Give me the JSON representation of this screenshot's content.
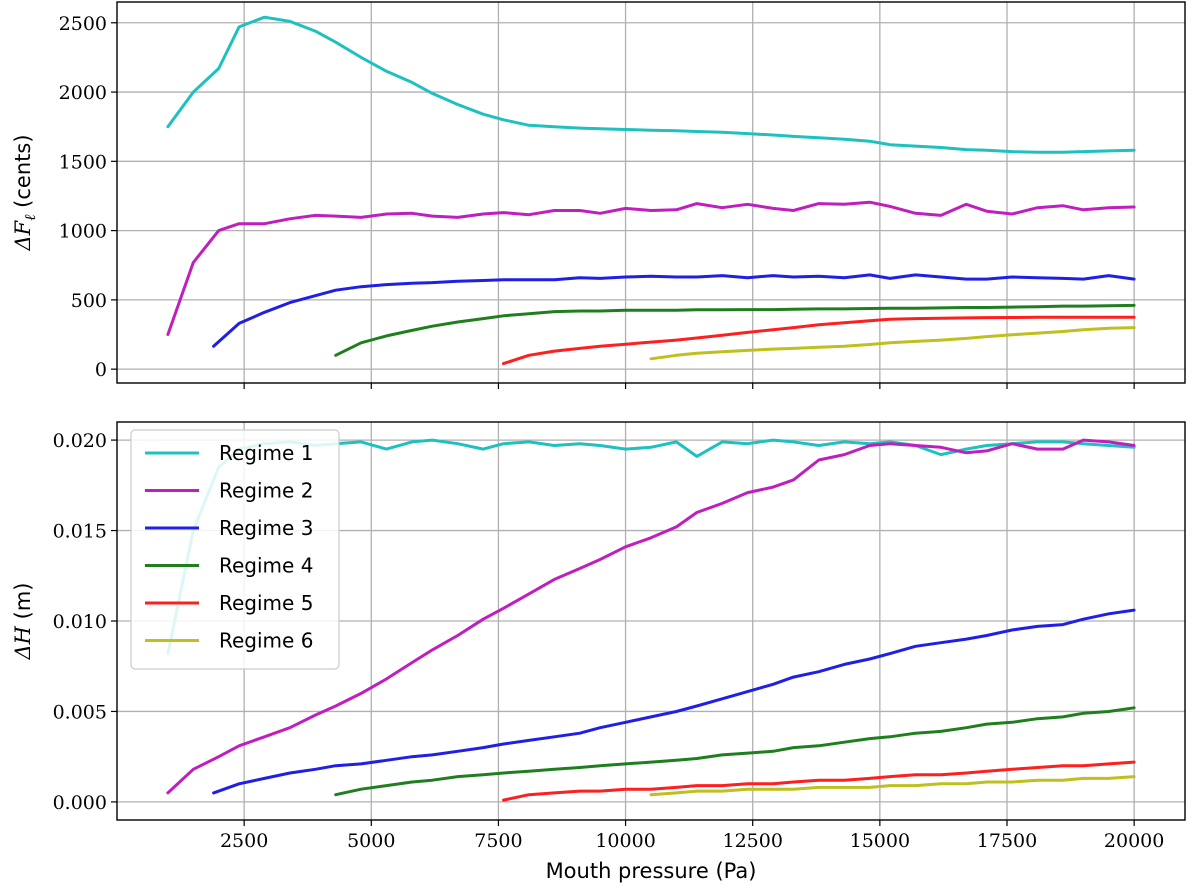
{
  "chart_data": [
    {
      "type": "line",
      "ylabel_main": "ΔF",
      "ylabel_sub": "ℓ",
      "ylabel_unit": "(cents)",
      "xlim": [
        0,
        21000
      ],
      "ylim": [
        -100,
        2650
      ],
      "xticks": [
        2500,
        5000,
        7500,
        10000,
        12500,
        15000,
        17500,
        20000
      ],
      "yticks": [
        0,
        500,
        1000,
        1500,
        2000,
        2500
      ],
      "ytick_labels": [
        "0",
        "500",
        "1000",
        "1500",
        "2000",
        "2500"
      ],
      "grid": true,
      "series": [
        {
          "color": "#1fc0c0",
          "x": [
            1000,
            1500,
            2000,
            2400,
            2900,
            3400,
            3900,
            4300,
            4800,
            5300,
            5800,
            6200,
            6700,
            7200,
            7600,
            8100,
            8600,
            9100,
            9500,
            10000,
            10500,
            11000,
            11400,
            11900,
            12400,
            12900,
            13300,
            13800,
            14300,
            14800,
            15200,
            15700,
            16200,
            16700,
            17100,
            17600,
            18100,
            18600,
            19000,
            19500,
            20000
          ],
          "y": [
            1750,
            2000,
            2170,
            2470,
            2540,
            2510,
            2440,
            2360,
            2250,
            2150,
            2070,
            1990,
            1910,
            1840,
            1800,
            1760,
            1750,
            1740,
            1735,
            1730,
            1725,
            1720,
            1715,
            1710,
            1700,
            1690,
            1680,
            1670,
            1660,
            1645,
            1620,
            1610,
            1600,
            1585,
            1580,
            1570,
            1565,
            1565,
            1570,
            1575,
            1580
          ]
        },
        {
          "color": "#bf1fbf",
          "x": [
            1000,
            1500,
            2000,
            2400,
            2900,
            3400,
            3900,
            4300,
            4800,
            5300,
            5800,
            6200,
            6700,
            7200,
            7600,
            8100,
            8600,
            9100,
            9500,
            10000,
            10500,
            11000,
            11400,
            11900,
            12400,
            12900,
            13300,
            13800,
            14300,
            14800,
            15200,
            15700,
            16200,
            16700,
            17100,
            17600,
            18100,
            18600,
            19000,
            19500,
            20000
          ],
          "y": [
            250,
            770,
            1000,
            1050,
            1050,
            1085,
            1110,
            1105,
            1095,
            1120,
            1125,
            1105,
            1095,
            1120,
            1130,
            1115,
            1145,
            1145,
            1125,
            1160,
            1145,
            1150,
            1195,
            1165,
            1190,
            1160,
            1145,
            1195,
            1190,
            1205,
            1175,
            1125,
            1110,
            1190,
            1140,
            1120,
            1165,
            1180,
            1150,
            1165,
            1170
          ]
        },
        {
          "color": "#1f1fe6",
          "x": [
            1900,
            2400,
            2900,
            3400,
            3900,
            4300,
            4800,
            5300,
            5800,
            6200,
            6700,
            7200,
            7600,
            8100,
            8600,
            9100,
            9500,
            10000,
            10500,
            11000,
            11400,
            11900,
            12400,
            12900,
            13300,
            13800,
            14300,
            14800,
            15200,
            15700,
            16200,
            16700,
            17100,
            17600,
            18100,
            18600,
            19000,
            19500,
            20000
          ],
          "y": [
            165,
            330,
            410,
            480,
            530,
            570,
            595,
            610,
            620,
            625,
            635,
            640,
            645,
            645,
            645,
            660,
            655,
            665,
            670,
            665,
            665,
            675,
            660,
            675,
            665,
            670,
            660,
            680,
            655,
            680,
            665,
            650,
            650,
            665,
            660,
            655,
            650,
            675,
            650
          ]
        },
        {
          "color": "#1f7f1f",
          "x": [
            4300,
            4800,
            5300,
            5800,
            6200,
            6700,
            7200,
            7600,
            8100,
            8600,
            9100,
            9500,
            10000,
            10500,
            11000,
            11400,
            11900,
            12400,
            12900,
            13300,
            13800,
            14300,
            14800,
            15200,
            15700,
            16200,
            16700,
            17100,
            17600,
            18100,
            18600,
            19000,
            19500,
            20000
          ],
          "y": [
            100,
            190,
            240,
            280,
            310,
            340,
            365,
            385,
            400,
            415,
            420,
            420,
            425,
            425,
            425,
            428,
            428,
            430,
            430,
            432,
            435,
            435,
            438,
            440,
            440,
            442,
            445,
            445,
            448,
            450,
            455,
            455,
            458,
            460
          ]
        },
        {
          "color": "#ff1f1f",
          "x": [
            7600,
            8100,
            8600,
            9100,
            9500,
            10000,
            10500,
            11000,
            11400,
            11900,
            12400,
            12900,
            13300,
            13800,
            14300,
            14800,
            15200,
            15700,
            16200,
            16700,
            17100,
            17600,
            18100,
            18600,
            19000,
            19500,
            20000
          ],
          "y": [
            40,
            100,
            130,
            150,
            165,
            180,
            195,
            210,
            225,
            245,
            265,
            285,
            300,
            320,
            335,
            350,
            360,
            365,
            368,
            370,
            372,
            373,
            374,
            374,
            375,
            375,
            375
          ]
        },
        {
          "color": "#bfbf1f",
          "x": [
            10500,
            11000,
            11400,
            11900,
            12400,
            12900,
            13300,
            13800,
            14300,
            14800,
            15200,
            15700,
            16200,
            16700,
            17100,
            17600,
            18100,
            18600,
            19000,
            19500,
            20000
          ],
          "y": [
            75,
            100,
            115,
            125,
            135,
            145,
            150,
            158,
            165,
            178,
            190,
            200,
            210,
            222,
            235,
            248,
            260,
            272,
            285,
            295,
            300
          ]
        }
      ]
    },
    {
      "type": "line",
      "ylabel_main": "ΔH",
      "ylabel_unit": "(m)",
      "xlabel": "Mouth pressure (Pa)",
      "xlim": [
        0,
        21000
      ],
      "ylim": [
        -0.001,
        0.021
      ],
      "xticks": [
        2500,
        5000,
        7500,
        10000,
        12500,
        15000,
        17500,
        20000
      ],
      "xtick_labels": [
        "2500",
        "5000",
        "7500",
        "10000",
        "12500",
        "15000",
        "17500",
        "20000"
      ],
      "yticks": [
        0,
        0.005,
        0.01,
        0.015,
        0.02
      ],
      "ytick_labels": [
        "0.000",
        "0.005",
        "0.010",
        "0.015",
        "0.020"
      ],
      "grid": true,
      "legend": "top-left",
      "series": [
        {
          "name": "Regime 1",
          "color": "#1fc0c0",
          "x": [
            1000,
            1500,
            2000,
            2400,
            2900,
            3400,
            3900,
            4300,
            4800,
            5300,
            5800,
            6200,
            6700,
            7200,
            7600,
            8100,
            8600,
            9100,
            9500,
            10000,
            10500,
            11000,
            11400,
            11900,
            12400,
            12900,
            13300,
            13800,
            14300,
            14800,
            15200,
            15700,
            16200,
            16700,
            17100,
            17600,
            18100,
            18600,
            19000,
            19500,
            20000
          ],
          "y": [
            0.0082,
            0.015,
            0.0185,
            0.0195,
            0.0198,
            0.0199,
            0.0197,
            0.0198,
            0.0199,
            0.0195,
            0.0199,
            0.02,
            0.0198,
            0.0195,
            0.0198,
            0.0199,
            0.0197,
            0.0198,
            0.0197,
            0.0195,
            0.0196,
            0.0199,
            0.0191,
            0.0199,
            0.0198,
            0.02,
            0.0199,
            0.0197,
            0.0199,
            0.0198,
            0.0199,
            0.0197,
            0.0192,
            0.0195,
            0.0197,
            0.0198,
            0.0199,
            0.0199,
            0.0198,
            0.0197,
            0.0196
          ]
        },
        {
          "name": "Regime 2",
          "color": "#bf1fbf",
          "x": [
            1000,
            1500,
            2000,
            2400,
            2900,
            3400,
            3900,
            4300,
            4800,
            5300,
            5800,
            6200,
            6700,
            7200,
            7600,
            8100,
            8600,
            9100,
            9500,
            10000,
            10500,
            11000,
            11400,
            11900,
            12400,
            12900,
            13300,
            13800,
            14300,
            14800,
            15200,
            15700,
            16200,
            16700,
            17100,
            17600,
            18100,
            18600,
            19000,
            19500,
            20000
          ],
          "y": [
            0.0005,
            0.0018,
            0.0025,
            0.0031,
            0.0036,
            0.0041,
            0.0048,
            0.0053,
            0.006,
            0.0068,
            0.0077,
            0.0084,
            0.0092,
            0.0101,
            0.0107,
            0.0115,
            0.0123,
            0.0129,
            0.0134,
            0.0141,
            0.0146,
            0.0152,
            0.016,
            0.0165,
            0.0171,
            0.0174,
            0.0178,
            0.0189,
            0.0192,
            0.0197,
            0.0198,
            0.0197,
            0.0196,
            0.0193,
            0.0194,
            0.0198,
            0.0195,
            0.0195,
            0.02,
            0.0199,
            0.0197
          ]
        },
        {
          "name": "Regime 3",
          "color": "#1f1fe6",
          "x": [
            1900,
            2400,
            2900,
            3400,
            3900,
            4300,
            4800,
            5300,
            5800,
            6200,
            6700,
            7200,
            7600,
            8100,
            8600,
            9100,
            9500,
            10000,
            10500,
            11000,
            11400,
            11900,
            12400,
            12900,
            13300,
            13800,
            14300,
            14800,
            15200,
            15700,
            16200,
            16700,
            17100,
            17600,
            18100,
            18600,
            19000,
            19500,
            20000
          ],
          "y": [
            0.0005,
            0.001,
            0.0013,
            0.0016,
            0.0018,
            0.002,
            0.0021,
            0.0023,
            0.0025,
            0.0026,
            0.0028,
            0.003,
            0.0032,
            0.0034,
            0.0036,
            0.0038,
            0.0041,
            0.0044,
            0.0047,
            0.005,
            0.0053,
            0.0057,
            0.0061,
            0.0065,
            0.0069,
            0.0072,
            0.0076,
            0.0079,
            0.0082,
            0.0086,
            0.0088,
            0.009,
            0.0092,
            0.0095,
            0.0097,
            0.0098,
            0.0101,
            0.0104,
            0.0106
          ]
        },
        {
          "name": "Regime 4",
          "color": "#1f7f1f",
          "x": [
            4300,
            4800,
            5300,
            5800,
            6200,
            6700,
            7200,
            7600,
            8100,
            8600,
            9100,
            9500,
            10000,
            10500,
            11000,
            11400,
            11900,
            12400,
            12900,
            13300,
            13800,
            14300,
            14800,
            15200,
            15700,
            16200,
            16700,
            17100,
            17600,
            18100,
            18600,
            19000,
            19500,
            20000
          ],
          "y": [
            0.0004,
            0.0007,
            0.0009,
            0.0011,
            0.0012,
            0.0014,
            0.0015,
            0.0016,
            0.0017,
            0.0018,
            0.0019,
            0.002,
            0.0021,
            0.0022,
            0.0023,
            0.0024,
            0.0026,
            0.0027,
            0.0028,
            0.003,
            0.0031,
            0.0033,
            0.0035,
            0.0036,
            0.0038,
            0.0039,
            0.0041,
            0.0043,
            0.0044,
            0.0046,
            0.0047,
            0.0049,
            0.005,
            0.0052
          ]
        },
        {
          "name": "Regime 5",
          "color": "#ff1f1f",
          "x": [
            7600,
            8100,
            8600,
            9100,
            9500,
            10000,
            10500,
            11000,
            11400,
            11900,
            12400,
            12900,
            13300,
            13800,
            14300,
            14800,
            15200,
            15700,
            16200,
            16700,
            17100,
            17600,
            18100,
            18600,
            19000,
            19500,
            20000
          ],
          "y": [
            0.0001,
            0.0004,
            0.0005,
            0.0006,
            0.0006,
            0.0007,
            0.0007,
            0.0008,
            0.0009,
            0.0009,
            0.001,
            0.001,
            0.0011,
            0.0012,
            0.0012,
            0.0013,
            0.0014,
            0.0015,
            0.0015,
            0.0016,
            0.0017,
            0.0018,
            0.0019,
            0.002,
            0.002,
            0.0021,
            0.0022
          ]
        },
        {
          "name": "Regime 6",
          "color": "#bfbf1f",
          "x": [
            10500,
            11000,
            11400,
            11900,
            12400,
            12900,
            13300,
            13800,
            14300,
            14800,
            15200,
            15700,
            16200,
            16700,
            17100,
            17600,
            18100,
            18600,
            19000,
            19500,
            20000
          ],
          "y": [
            0.0004,
            0.0005,
            0.0006,
            0.0006,
            0.0007,
            0.0007,
            0.0007,
            0.0008,
            0.0008,
            0.0008,
            0.0009,
            0.0009,
            0.001,
            0.001,
            0.0011,
            0.0011,
            0.0012,
            0.0012,
            0.0013,
            0.0013,
            0.0014
          ]
        }
      ]
    }
  ]
}
